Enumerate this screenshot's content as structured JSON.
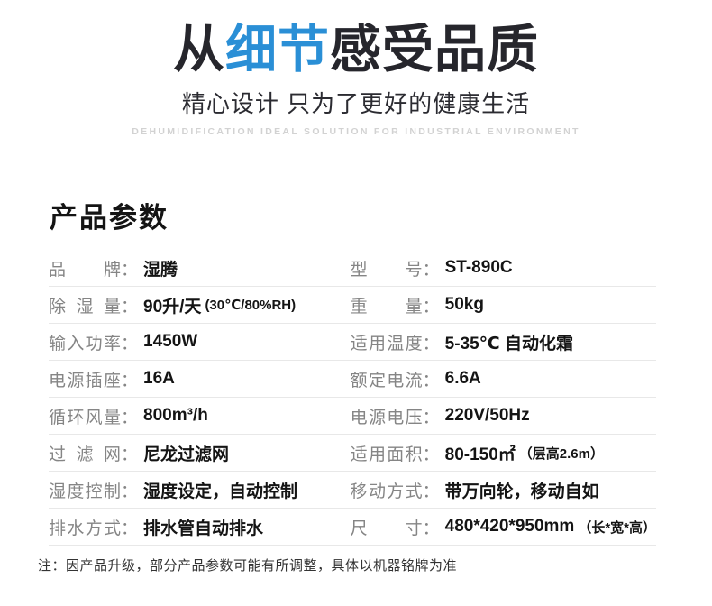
{
  "colon": "：",
  "hero": {
    "title_prefix": "从",
    "title_highlight": "细节",
    "title_suffix": "感受品质",
    "subtitle": "精心设计 只为了更好的健康生活",
    "tagline_en": "DEHUMIDIFICATION IDEAL SOLUTION FOR INDUSTRIAL ENVIRONMENT",
    "highlight_color": "#2a8fd6",
    "title_color": "#26262c"
  },
  "section": {
    "title": "产品参数"
  },
  "table": {
    "rows": [
      {
        "left": {
          "label": "品牌",
          "value": "湿腾",
          "note": ""
        },
        "right": {
          "label": "型号",
          "value": "ST-890C",
          "note": ""
        }
      },
      {
        "left": {
          "label": "除湿量",
          "value": "90升/天",
          "note": "(30℃/80%RH)"
        },
        "right": {
          "label": "重量",
          "value": "50kg",
          "note": ""
        }
      },
      {
        "left": {
          "label": "输入功率",
          "value": "1450W",
          "note": ""
        },
        "right": {
          "label": "适用温度",
          "value": "5-35℃ 自动化霜",
          "note": ""
        }
      },
      {
        "left": {
          "label": "电源插座",
          "value": "16A",
          "note": ""
        },
        "right": {
          "label": "额定电流",
          "value": "6.6A",
          "note": ""
        }
      },
      {
        "left": {
          "label": "循环风量",
          "value": "800m³/h",
          "note": ""
        },
        "right": {
          "label": "电源电压",
          "value": "220V/50Hz",
          "note": ""
        }
      },
      {
        "left": {
          "label": "过滤网",
          "value": "尼龙过滤网",
          "note": ""
        },
        "right": {
          "label": "适用面积",
          "value": "80-150㎡",
          "note": "（层高2.6m）"
        }
      },
      {
        "left": {
          "label": "湿度控制",
          "value": "湿度设定，自动控制",
          "note": ""
        },
        "right": {
          "label": "移动方式",
          "value": "带万向轮，移动自如",
          "note": ""
        }
      },
      {
        "left": {
          "label": "排水方式",
          "value": "排水管自动排水",
          "note": ""
        },
        "right": {
          "label": "尺寸",
          "value": "480*420*950mm",
          "note": "（长*宽*高）"
        }
      }
    ]
  },
  "footnote": "注：因产品升级，部分产品参数可能有所调整，具体以机器铭牌为准"
}
